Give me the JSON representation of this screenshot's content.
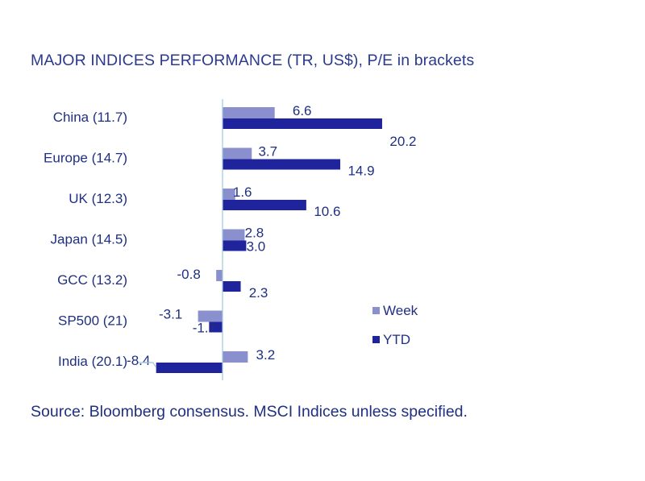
{
  "page": {
    "title": "MAJOR INDICES PERFORMANCE (TR, US$), P/E in brackets",
    "source": "Source: Bloomberg consensus. MSCI Indices unless specified."
  },
  "colors": {
    "week": "#8a8fce",
    "ytd": "#1f249c",
    "axis": "#9ec8e0",
    "text": "#1f2f82"
  },
  "chart_data": {
    "type": "bar",
    "orientation": "horizontal",
    "title": "MAJOR INDICES PERFORMANCE (TR, US$), P/E in brackets",
    "categories": [
      "China (11.7)",
      "Europe (14.7)",
      "UK (12.3)",
      "Japan (14.5)",
      "GCC (13.2)",
      "SP500 (21)",
      "India (20.1)"
    ],
    "series": [
      {
        "name": "Week",
        "values": [
          6.6,
          3.7,
          1.6,
          2.8,
          -0.8,
          -3.1,
          3.2
        ]
      },
      {
        "name": "YTD",
        "values": [
          20.2,
          14.9,
          10.6,
          3.0,
          2.3,
          -1.7,
          -8.4
        ]
      }
    ],
    "xlim": [
      -8.4,
      20.2
    ],
    "legend": {
      "position": "right",
      "entries": [
        "Week",
        "YTD"
      ]
    },
    "xlabel": "",
    "ylabel": ""
  }
}
